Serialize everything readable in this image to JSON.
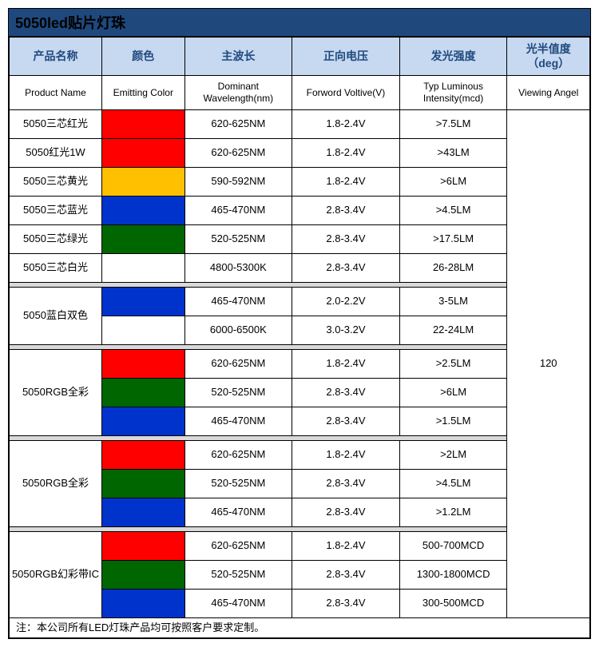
{
  "title": "5050led贴片灯珠",
  "colors": {
    "title_bg": "#1f497d",
    "header_bg": "#c6d9f1",
    "header_fg": "#1f497d",
    "sep_bg": "#d9d9d9",
    "border": "#000000",
    "swatch_red": "#ff0000",
    "swatch_yellow": "#ffc000",
    "swatch_blue": "#0033cc",
    "swatch_green": "#006600",
    "swatch_white": "#ffffff"
  },
  "headers_cn": {
    "name": "产品名称",
    "color": "颜色",
    "wave": "主波长",
    "volt": "正向电压",
    "lum": "发光强度",
    "angle": "光半值度（deg）"
  },
  "headers_en": {
    "name": "Product Name",
    "color": "Emitting Color",
    "wave": "Dominant Wavelength(nm)",
    "volt": "Forword Voltive(V)",
    "lum": "Typ Luminous Intensity(mcd)",
    "angle": "Viewing Angel"
  },
  "single_rows": [
    {
      "name": "5050三芯红光",
      "swatch": "#ff0000",
      "wave": "620-625NM",
      "volt": "1.8-2.4V",
      "lum": ">7.5LM"
    },
    {
      "name": "5050红光1W",
      "swatch": "#ff0000",
      "wave": "620-625NM",
      "volt": "1.8-2.4V",
      "lum": ">43LM"
    },
    {
      "name": "5050三芯黄光",
      "swatch": "#ffc000",
      "wave": "590-592NM",
      "volt": "1.8-2.4V",
      "lum": ">6LM"
    },
    {
      "name": "5050三芯蓝光",
      "swatch": "#0033cc",
      "wave": "465-470NM",
      "volt": "2.8-3.4V",
      "lum": ">4.5LM"
    },
    {
      "name": "5050三芯绿光",
      "swatch": "#006600",
      "wave": "520-525NM",
      "volt": "2.8-3.4V",
      "lum": ">17.5LM"
    },
    {
      "name": "5050三芯白光",
      "swatch": "#ffffff",
      "wave": "4800-5300K",
      "volt": "2.8-3.4V",
      "lum": "26-28LM"
    }
  ],
  "group1": {
    "name": "5050蓝白双色",
    "rows": [
      {
        "swatch": "#0033cc",
        "wave": "465-470NM",
        "volt": "2.0-2.2V",
        "lum": "3-5LM"
      },
      {
        "swatch": "#ffffff",
        "wave": "6000-6500K",
        "volt": "3.0-3.2V",
        "lum": "22-24LM"
      }
    ]
  },
  "group2": {
    "name": "5050RGB全彩",
    "rows": [
      {
        "swatch": "#ff0000",
        "wave": "620-625NM",
        "volt": "1.8-2.4V",
        "lum": ">2.5LM"
      },
      {
        "swatch": "#006600",
        "wave": "520-525NM",
        "volt": "2.8-3.4V",
        "lum": ">6LM"
      },
      {
        "swatch": "#0033cc",
        "wave": "465-470NM",
        "volt": "2.8-3.4V",
        "lum": ">1.5LM"
      }
    ]
  },
  "group3": {
    "name": "5050RGB全彩",
    "rows": [
      {
        "swatch": "#ff0000",
        "wave": "620-625NM",
        "volt": "1.8-2.4V",
        "lum": ">2LM"
      },
      {
        "swatch": "#006600",
        "wave": "520-525NM",
        "volt": "2.8-3.4V",
        "lum": ">4.5LM"
      },
      {
        "swatch": "#0033cc",
        "wave": "465-470NM",
        "volt": "2.8-3.4V",
        "lum": ">1.2LM"
      }
    ]
  },
  "group4": {
    "name": "5050RGB幻彩带IC",
    "rows": [
      {
        "swatch": "#ff0000",
        "wave": "620-625NM",
        "volt": "1.8-2.4V",
        "lum": "500-700MCD"
      },
      {
        "swatch": "#006600",
        "wave": "520-525NM",
        "volt": "2.8-3.4V",
        "lum": "1300-1800MCD"
      },
      {
        "swatch": "#0033cc",
        "wave": "465-470NM",
        "volt": "2.8-3.4V",
        "lum": "300-500MCD"
      }
    ]
  },
  "viewing_angle": "120",
  "footnote": "注：本公司所有LED灯珠产品均可按照客户要求定制。"
}
